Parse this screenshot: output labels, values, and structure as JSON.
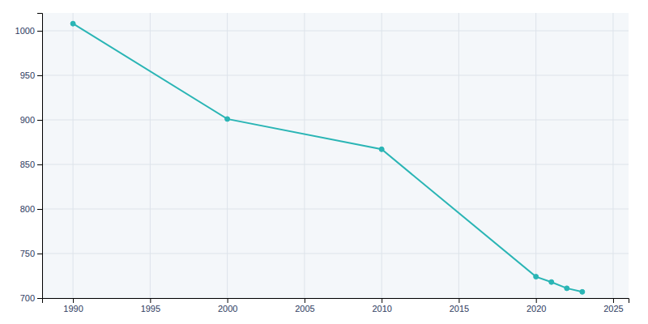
{
  "chart_data": {
    "type": "line",
    "x": [
      1990,
      2000,
      2010,
      2020,
      2021,
      2022,
      2023
    ],
    "values": [
      1008,
      901,
      867,
      724,
      718,
      711,
      707
    ],
    "color": "#2ab5b5",
    "marker": "circle",
    "xlim": [
      1988,
      2026
    ],
    "ylim": [
      700,
      1020
    ],
    "xticks": [
      1990,
      1995,
      2000,
      2005,
      2010,
      2015,
      2020,
      2025
    ],
    "yticks": [
      700,
      750,
      800,
      850,
      900,
      950,
      1000
    ],
    "grid": true
  }
}
